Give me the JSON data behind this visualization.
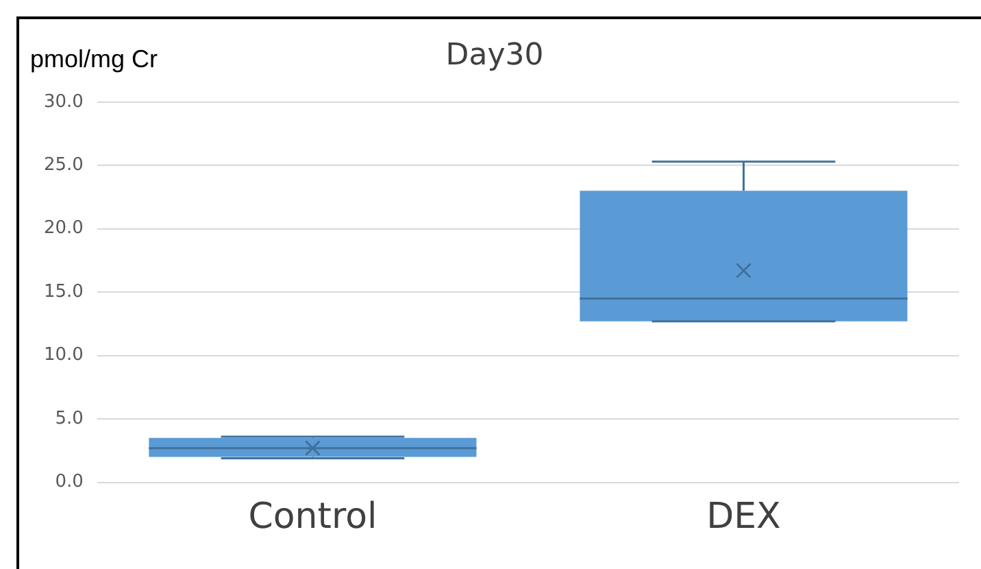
{
  "chart_data": {
    "type": "box",
    "title": "Day30",
    "ylabel": "pmol/mg Cr",
    "categories": [
      "Control",
      "DEX"
    ],
    "color": "#5b9bd5",
    "boxes": [
      {
        "low": 1.9,
        "q1": 2.0,
        "median": 2.7,
        "q3": 3.5,
        "high": 3.6,
        "mean": 2.7
      },
      {
        "low": 12.7,
        "q1": 12.7,
        "median": 14.5,
        "q3": 23.0,
        "high": 25.3,
        "mean": 16.7
      }
    ],
    "ylim": [
      0,
      30
    ],
    "yticks": [
      {
        "value": 0,
        "label": "0.0"
      },
      {
        "value": 5,
        "label": "5.0"
      },
      {
        "value": 10,
        "label": "10.0"
      },
      {
        "value": 15,
        "label": "15.0"
      },
      {
        "value": 20,
        "label": "20.0"
      },
      {
        "value": 25,
        "label": "25.0"
      },
      {
        "value": 30,
        "label": "30.0"
      }
    ],
    "grid": "y",
    "legend": false
  }
}
